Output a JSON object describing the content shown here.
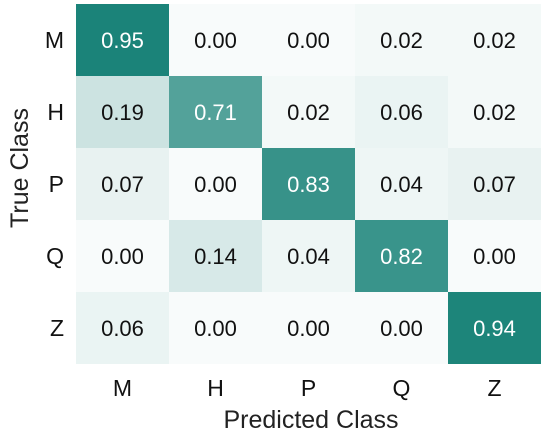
{
  "chart_data": {
    "type": "heatmap",
    "title": "",
    "xlabel": "Predicted Class",
    "ylabel": "True Class",
    "x_categories": [
      "M",
      "H",
      "P",
      "Q",
      "Z"
    ],
    "y_categories": [
      "M",
      "H",
      "P",
      "Q",
      "Z"
    ],
    "values": [
      [
        0.95,
        0.0,
        0.0,
        0.02,
        0.02
      ],
      [
        0.19,
        0.71,
        0.02,
        0.06,
        0.02
      ],
      [
        0.07,
        0.0,
        0.83,
        0.04,
        0.07
      ],
      [
        0.0,
        0.14,
        0.04,
        0.82,
        0.0
      ],
      [
        0.06,
        0.0,
        0.0,
        0.0,
        0.94
      ]
    ],
    "value_range": [
      0,
      1
    ],
    "grid": false,
    "legend": "none",
    "colors": {
      "high": "#0f7d72",
      "low": "#ffffff",
      "text_dark": "#111111",
      "text_light": "#ffffff"
    }
  }
}
